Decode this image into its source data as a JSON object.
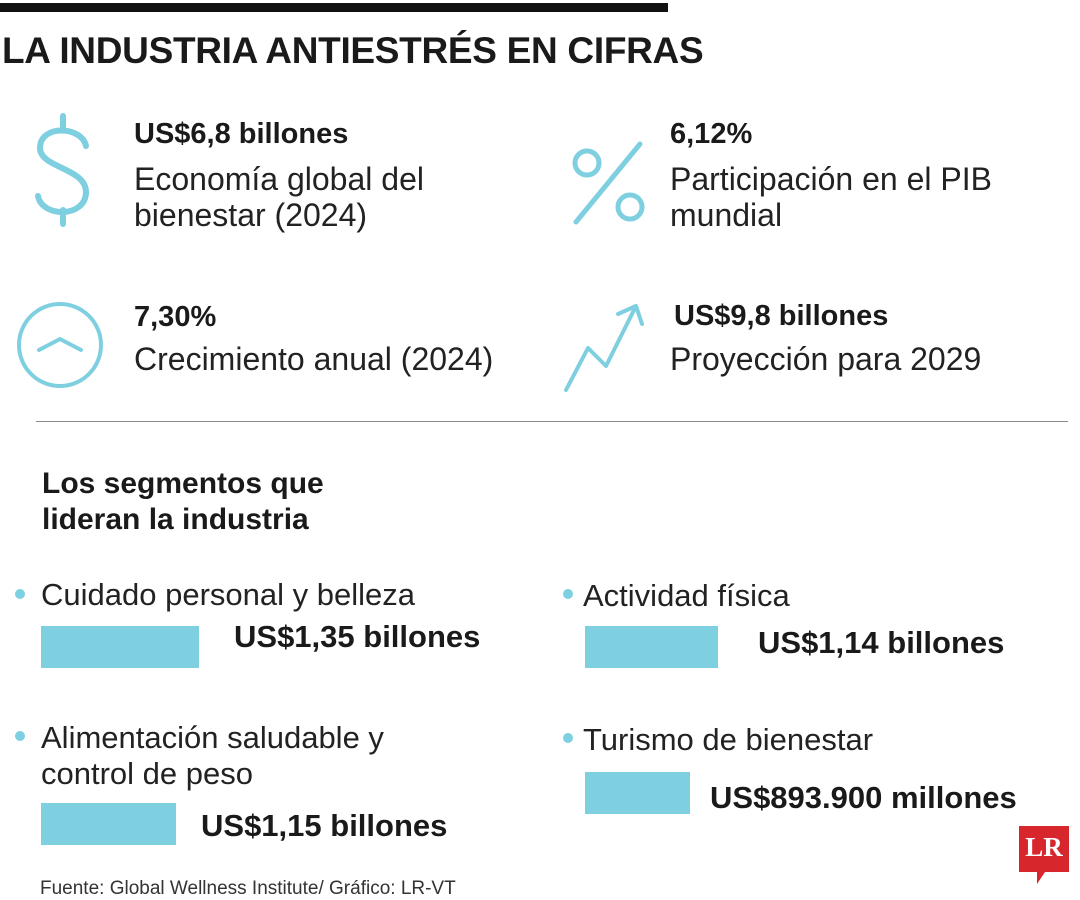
{
  "title": "LA INDUSTRIA ANTIESTRÉS EN CIFRAS",
  "colors": {
    "accent": "#7ECFE0",
    "logo": "#D7262C",
    "text": "#1a1a1a"
  },
  "stats": [
    {
      "icon": "dollar-icon",
      "value": "US$6,8 billones",
      "label": "Economía global del bienestar (2024)"
    },
    {
      "icon": "percent-icon",
      "value": "6,12%",
      "label": "Participación en el PIB mundial"
    },
    {
      "icon": "growth-circle-icon",
      "value": "7,30%",
      "label": "Crecimiento anual (2024)"
    },
    {
      "icon": "trend-arrow-icon",
      "value": "US$9,8 billones",
      "label": "Proyección para 2029"
    }
  ],
  "section_title": "Los segmentos que lideran la industria",
  "source": "Fuente: Global Wellness Institute/ Gráfico: LR-VT",
  "logo_text": "LR",
  "chart_data": {
    "type": "bar",
    "title": "Los segmentos que lideran la industria",
    "unit": "US$ billones",
    "categories": [
      "Cuidado personal y belleza",
      "Actividad física",
      "Alimentación saludable y control de peso",
      "Turismo de bienestar"
    ],
    "values": [
      1.35,
      1.14,
      1.15,
      0.8939
    ],
    "labels": [
      "US$1,35 billones",
      "US$1,14 billones",
      "US$1,15 billones",
      "US$893.900 millones"
    ]
  }
}
